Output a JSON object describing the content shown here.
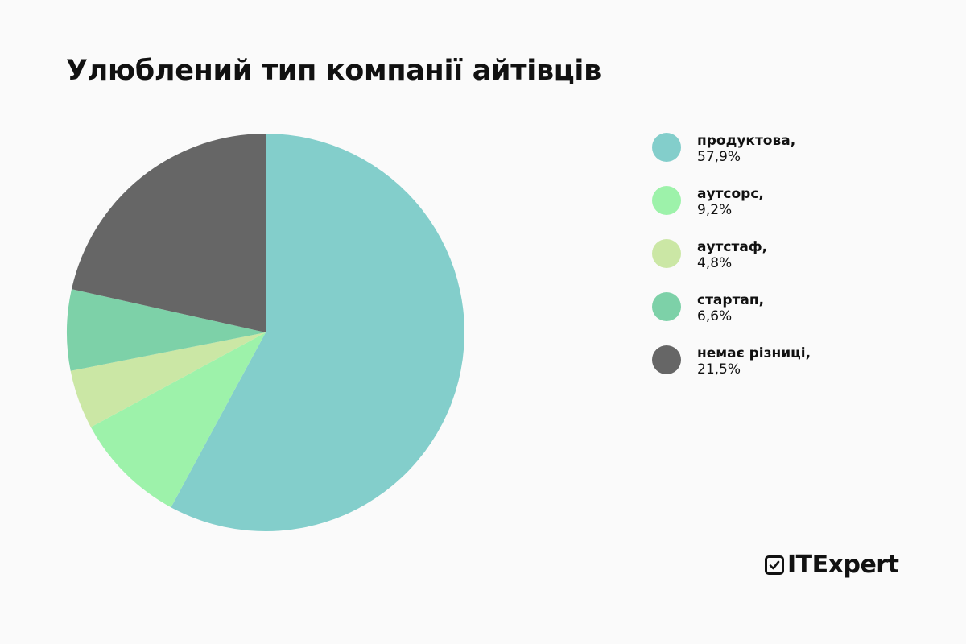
{
  "chart_data": {
    "type": "pie",
    "title": "Улюблений тип компанії айтівців",
    "categories": [
      "продуктова",
      "аутсорс",
      "аутстаф",
      "стартап",
      "немає різниці"
    ],
    "values": [
      57.9,
      9.2,
      4.8,
      6.6,
      21.5
    ],
    "colors": [
      "#83cecb",
      "#9df2aa",
      "#cbe7a5",
      "#7dd1a8",
      "#666666"
    ],
    "legend_position": "right",
    "start_angle": "12 o'clock, clockwise"
  },
  "title": "Улюблений тип компанії айтівців",
  "legend": [
    {
      "label": "продуктова,",
      "value": "57,9%",
      "color": "#83cecb"
    },
    {
      "label": "аутсорс,",
      "value": "9,2%",
      "color": "#9df2aa"
    },
    {
      "label": "аутстаф,",
      "value": "4,8%",
      "color": "#cbe7a5"
    },
    {
      "label": "стартап,",
      "value": "6,6%",
      "color": "#7dd1a8"
    },
    {
      "label": "немає різниці,",
      "value": "21,5%",
      "color": "#666666"
    }
  ],
  "logo": {
    "text": "ITExpert",
    "icon": "checkbox-icon"
  }
}
